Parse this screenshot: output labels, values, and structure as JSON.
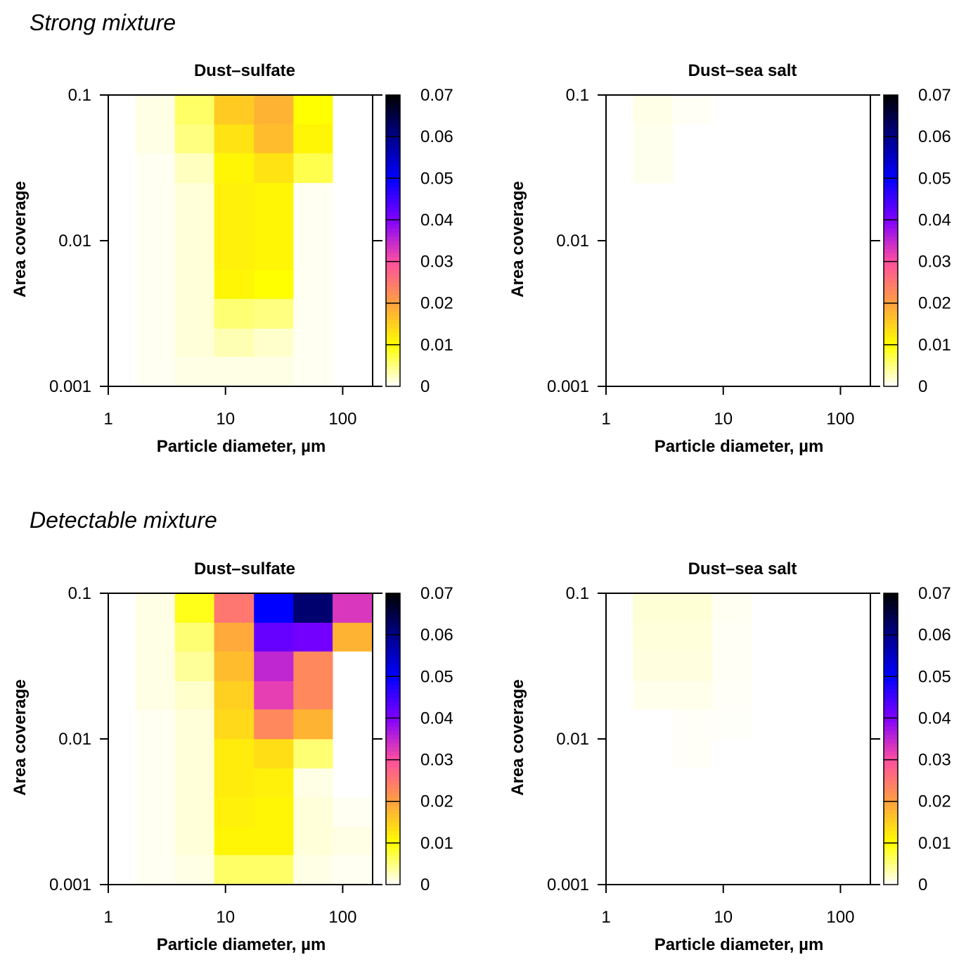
{
  "sections": [
    {
      "title": "Strong mixture"
    },
    {
      "title": "Detectable mixture"
    }
  ],
  "palette": {
    "stops": [
      [
        0.0,
        "#ffffff"
      ],
      [
        0.01,
        "#ffff00"
      ],
      [
        0.02,
        "#ffa040"
      ],
      [
        0.03,
        "#ff4fa0"
      ],
      [
        0.04,
        "#8000ff"
      ],
      [
        0.05,
        "#0000ff"
      ],
      [
        0.06,
        "#00008a"
      ],
      [
        0.07,
        "#000000"
      ]
    ]
  },
  "chart_data": [
    {
      "type": "heatmap",
      "section": "Strong mixture",
      "title": "Dust–sulfate",
      "xlabel": "Particle diameter, µm",
      "ylabel": "Area coverage",
      "x_scale": "log",
      "y_scale": "log",
      "xlim": [
        1,
        180
      ],
      "ylim": [
        0.001,
        0.1
      ],
      "x_ticks": [
        "1",
        "10",
        "100"
      ],
      "y_ticks": [
        "0.001",
        "0.01",
        "0.1"
      ],
      "x_bins": [
        1.7,
        3.7,
        8.0,
        17.5,
        38,
        82,
        180
      ],
      "y_bins": [
        0.001,
        0.0016,
        0.0025,
        0.004,
        0.0063,
        0.01,
        0.016,
        0.025,
        0.04,
        0.063,
        0.1
      ],
      "values": [
        [
          0.0005,
          0.001,
          0.001,
          0.001,
          0.0005,
          0.0
        ],
        [
          0.0005,
          0.0015,
          0.003,
          0.002,
          0.0005,
          0.0
        ],
        [
          0.0005,
          0.0015,
          0.0055,
          0.005,
          0.0005,
          0.0
        ],
        [
          0.0005,
          0.0015,
          0.011,
          0.01,
          0.0005,
          0.0
        ],
        [
          0.0005,
          0.0015,
          0.0115,
          0.011,
          0.0005,
          0.0
        ],
        [
          0.0005,
          0.0015,
          0.0115,
          0.011,
          0.0005,
          0.0
        ],
        [
          0.0005,
          0.0015,
          0.0115,
          0.011,
          0.0005,
          0.0
        ],
        [
          0.0005,
          0.0025,
          0.011,
          0.013,
          0.007,
          0.0
        ],
        [
          0.001,
          0.005,
          0.013,
          0.017,
          0.011,
          0.0
        ],
        [
          0.001,
          0.006,
          0.0155,
          0.018,
          0.01,
          0.0
        ]
      ],
      "colorbar": {
        "ticks": [
          "0",
          "0.01",
          "0.02",
          "0.03",
          "0.04",
          "0.05",
          "0.06",
          "0.07"
        ],
        "range": [
          0,
          0.07
        ]
      }
    },
    {
      "type": "heatmap",
      "section": "Strong mixture",
      "title": "Dust–sea salt",
      "xlabel": "Particle diameter, µm",
      "ylabel": "Area coverage",
      "x_scale": "log",
      "y_scale": "log",
      "xlim": [
        1,
        180
      ],
      "ylim": [
        0.001,
        0.1
      ],
      "x_ticks": [
        "1",
        "10",
        "100"
      ],
      "y_ticks": [
        "0.001",
        "0.01",
        "0.1"
      ],
      "x_bins": [
        1.7,
        3.7,
        8.0,
        17.5,
        38,
        82,
        180
      ],
      "y_bins": [
        0.001,
        0.0016,
        0.0025,
        0.004,
        0.0063,
        0.01,
        0.016,
        0.025,
        0.04,
        0.063,
        0.1
      ],
      "values": [
        [
          0,
          0,
          0,
          0,
          0,
          0
        ],
        [
          0,
          0,
          0,
          0,
          0,
          0
        ],
        [
          0,
          0,
          0,
          0,
          0,
          0
        ],
        [
          0,
          0,
          0,
          0,
          0,
          0
        ],
        [
          0,
          0,
          0,
          0,
          0,
          0
        ],
        [
          0,
          0,
          0,
          0,
          0,
          0
        ],
        [
          0,
          0,
          0,
          0,
          0,
          0
        ],
        [
          0.0007,
          0,
          0,
          0,
          0,
          0
        ],
        [
          0.0007,
          0,
          0,
          0,
          0,
          0
        ],
        [
          0.0009,
          0.0004,
          0,
          0,
          0,
          0
        ]
      ],
      "colorbar": {
        "ticks": [
          "0",
          "0.01",
          "0.02",
          "0.03",
          "0.04",
          "0.05",
          "0.06",
          "0.07"
        ],
        "range": [
          0,
          0.07
        ]
      }
    },
    {
      "type": "heatmap",
      "section": "Detectable mixture",
      "title": "Dust–sulfate",
      "xlabel": "Particle diameter, µm",
      "ylabel": "Area coverage",
      "x_scale": "log",
      "y_scale": "log",
      "xlim": [
        1,
        180
      ],
      "ylim": [
        0.001,
        0.1
      ],
      "x_ticks": [
        "1",
        "10",
        "100"
      ],
      "y_ticks": [
        "0.001",
        "0.01",
        "0.1"
      ],
      "x_bins": [
        1.7,
        3.7,
        8.0,
        17.5,
        38,
        82,
        180
      ],
      "y_bins": [
        0.001,
        0.0016,
        0.0025,
        0.004,
        0.0063,
        0.01,
        0.016,
        0.025,
        0.04,
        0.063,
        0.1
      ],
      "values": [
        [
          0.0005,
          0.001,
          0.006,
          0.006,
          0.001,
          0.0005
        ],
        [
          0.0005,
          0.0015,
          0.011,
          0.011,
          0.0015,
          0.001
        ],
        [
          0.0005,
          0.0015,
          0.0115,
          0.011,
          0.0015,
          0.0005
        ],
        [
          0.0005,
          0.0015,
          0.012,
          0.0115,
          0.001,
          0.0
        ],
        [
          0.0005,
          0.0015,
          0.012,
          0.0135,
          0.0055,
          0.0
        ],
        [
          0.0005,
          0.0015,
          0.014,
          0.023,
          0.018,
          0.0
        ],
        [
          0.001,
          0.002,
          0.015,
          0.032,
          0.023,
          0.0
        ],
        [
          0.001,
          0.004,
          0.017,
          0.035,
          0.023,
          0.0
        ],
        [
          0.001,
          0.0055,
          0.019,
          0.042,
          0.041,
          0.018
        ],
        [
          0.001,
          0.009,
          0.025,
          0.05,
          0.062,
          0.033
        ]
      ],
      "colorbar": {
        "ticks": [
          "0",
          "0.01",
          "0.02",
          "0.03",
          "0.04",
          "0.05",
          "0.06",
          "0.07"
        ],
        "range": [
          0,
          0.07
        ]
      }
    },
    {
      "type": "heatmap",
      "section": "Detectable mixture",
      "title": "Dust–sea salt",
      "xlabel": "Particle diameter, µm",
      "ylabel": "Area coverage",
      "x_scale": "log",
      "y_scale": "log",
      "xlim": [
        1,
        180
      ],
      "ylim": [
        0.001,
        0.1
      ],
      "x_ticks": [
        "1",
        "10",
        "100"
      ],
      "y_ticks": [
        "0.001",
        "0.01",
        "0.1"
      ],
      "x_bins": [
        1.7,
        3.7,
        8.0,
        17.5,
        38,
        82,
        180
      ],
      "y_bins": [
        0.001,
        0.0016,
        0.0025,
        0.004,
        0.0063,
        0.01,
        0.016,
        0.025,
        0.04,
        0.063,
        0.1
      ],
      "values": [
        [
          0,
          0,
          0,
          0,
          0,
          0
        ],
        [
          0,
          0,
          0,
          0,
          0,
          0
        ],
        [
          0,
          0,
          0,
          0,
          0,
          0
        ],
        [
          0,
          0,
          0,
          0,
          0,
          0
        ],
        [
          0,
          0.0003,
          0,
          0,
          0,
          0
        ],
        [
          0,
          0.0003,
          0.0002,
          0,
          0,
          0
        ],
        [
          0.0008,
          0.0008,
          0.0003,
          0,
          0,
          0
        ],
        [
          0.0012,
          0.0012,
          0.0004,
          0,
          0,
          0
        ],
        [
          0.0014,
          0.0014,
          0.0004,
          0,
          0,
          0
        ],
        [
          0.0016,
          0.0016,
          0.0005,
          0,
          0,
          0
        ]
      ],
      "colorbar": {
        "ticks": [
          "0",
          "0.01",
          "0.02",
          "0.03",
          "0.04",
          "0.05",
          "0.06",
          "0.07"
        ],
        "range": [
          0,
          0.07
        ]
      }
    }
  ]
}
